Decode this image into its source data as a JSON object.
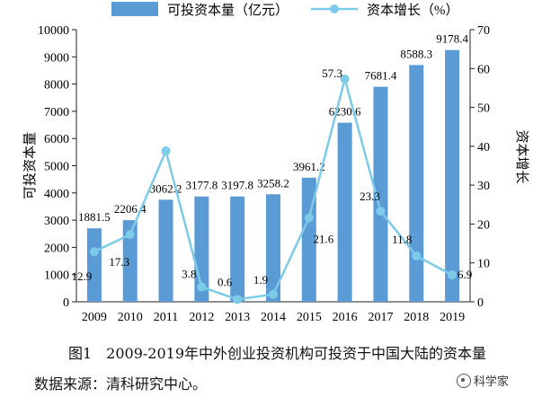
{
  "colors": {
    "bar": "#5b9bd5",
    "line": "#7ccbe8",
    "axis": "#222222"
  },
  "chart_data": {
    "type": "bar",
    "categories": [
      "2009",
      "2010",
      "2011",
      "2012",
      "2013",
      "2014",
      "2015",
      "2016",
      "2017",
      "2018",
      "2019"
    ],
    "series": [
      {
        "name": "可投资本量（亿元）",
        "type": "bar",
        "axis": "left",
        "values": [
          1881.5,
          2206.4,
          3062.2,
          3177.8,
          3197.8,
          3258.2,
          3961.2,
          6230.6,
          7681.4,
          8588.3,
          9178.4
        ],
        "display_values": [
          2700,
          3000,
          3750,
          3870,
          3870,
          3950,
          4560,
          6580,
          7900,
          8700,
          9250
        ],
        "labels": [
          "1881.5",
          "2206.4",
          "3062.2",
          "3177.8",
          "3197.8",
          "3258.2",
          "3961.2",
          "6230.6",
          "7681.4",
          "8588.3",
          "9178.4"
        ]
      },
      {
        "name": "资本增长（%）",
        "type": "line",
        "axis": "right",
        "values": [
          12.9,
          17.3,
          38.8,
          3.8,
          0.6,
          1.9,
          21.6,
          57.3,
          23.3,
          11.8,
          6.9
        ],
        "labels": [
          "12.9",
          "17.3",
          "",
          "3.8",
          "0.6",
          "1.9",
          "21.6",
          "57.3",
          "23.3",
          "11.8",
          "6.9"
        ]
      }
    ],
    "ylabel": "可投资本量",
    "y2label": "资本增长",
    "ylim": [
      0,
      10000
    ],
    "yticks": [
      "0",
      "1000",
      "2000",
      "3000",
      "4000",
      "5000",
      "6000",
      "7000",
      "8000",
      "9000",
      "10000"
    ],
    "y2lim": [
      0,
      70
    ],
    "y2ticks": [
      "0",
      "10",
      "20",
      "30",
      "40",
      "50",
      "60",
      "70"
    ],
    "grid": false,
    "legend_position": "top"
  },
  "caption": "图1　2009-2019年中外创业投资机构可投资于中国大陆的资本量",
  "source": "数据来源：清科研究中心。",
  "watermark": "科学家"
}
